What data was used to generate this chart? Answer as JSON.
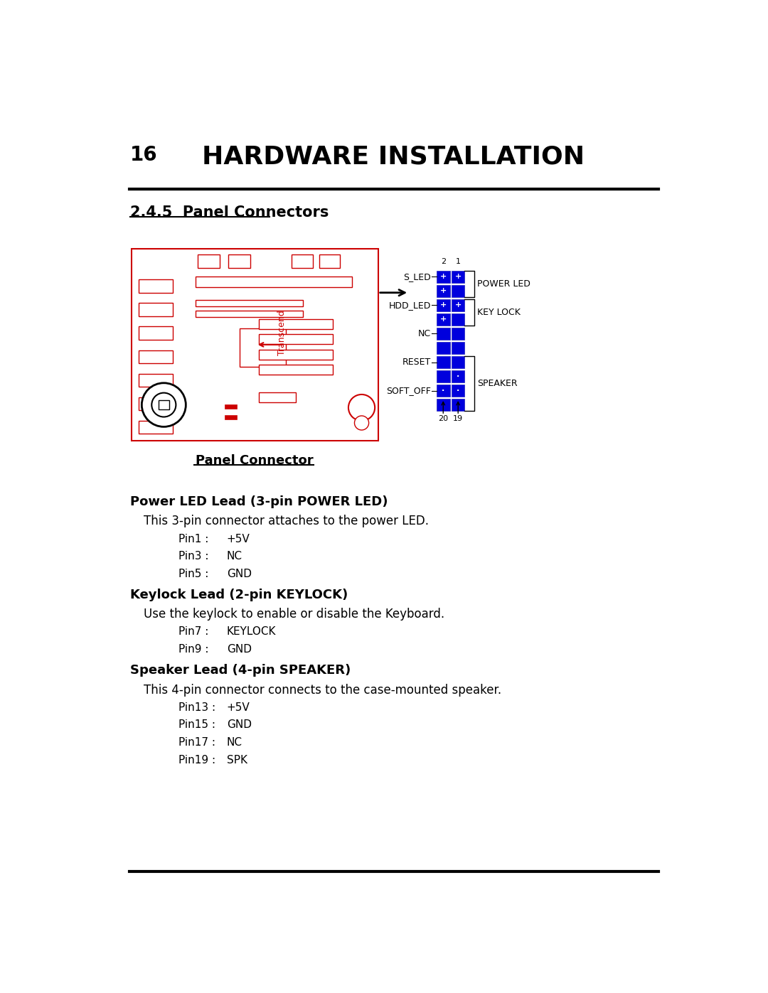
{
  "page_num": "16",
  "title": "HARDWARE INSTALLATION",
  "section": "2.4.5  Panel Connectors",
  "diagram_caption": "Panel Connector",
  "bg_color": "#ffffff",
  "text_color": "#000000",
  "red_color": "#cc0000",
  "blue_color": "#0000dd",
  "sections": [
    {
      "heading": "Power LED Lead (3-pin POWER LED)",
      "description": "This 3-pin connector attaches to the power LED.",
      "pins": [
        {
          "pin": "Pin1 :",
          "value": "+5V"
        },
        {
          "pin": "Pin3 :",
          "value": "NC"
        },
        {
          "pin": "Pin5 :",
          "value": "GND"
        }
      ]
    },
    {
      "heading": "Keylock Lead (2-pin KEYLOCK)",
      "description": "Use the keylock to enable or disable the Keyboard.",
      "pins": [
        {
          "pin": "Pin7 :",
          "value": "KEYLOCK"
        },
        {
          "pin": "Pin9 :",
          "value": "GND"
        }
      ]
    },
    {
      "heading": "Speaker Lead (4-pin SPEAKER)",
      "description": "This 4-pin connector connects to the case-mounted speaker.",
      "pins": [
        {
          "pin": "Pin13 :",
          "value": "+5V"
        },
        {
          "pin": "Pin15 :",
          "value": "GND"
        },
        {
          "pin": "Pin17 :",
          "value": "NC"
        },
        {
          "pin": "Pin19 :",
          "value": "SPK"
        }
      ]
    }
  ],
  "connector_labels_left": [
    "S_LED",
    "HDD_LED",
    "NC",
    "RESET",
    "SOFT_OFF"
  ],
  "connector_label_rows": [
    0,
    2,
    4,
    6,
    8
  ],
  "right_label_groups": [
    {
      "label": "POWER LED",
      "r_start": 0,
      "r_end": 1
    },
    {
      "label": "KEY LOCK",
      "r_start": 2,
      "r_end": 3
    },
    {
      "label": "SPEAKER",
      "r_start": 6,
      "r_end": 9
    }
  ],
  "pin_marks": [
    [
      "+",
      "+"
    ],
    [
      "+",
      ""
    ],
    [
      "+",
      "+"
    ],
    [
      "+",
      ""
    ],
    [
      "",
      ""
    ],
    [
      "",
      ""
    ],
    [
      "",
      ""
    ],
    [
      "",
      "·"
    ],
    [
      "·",
      "·"
    ],
    [
      "",
      ""
    ]
  ]
}
